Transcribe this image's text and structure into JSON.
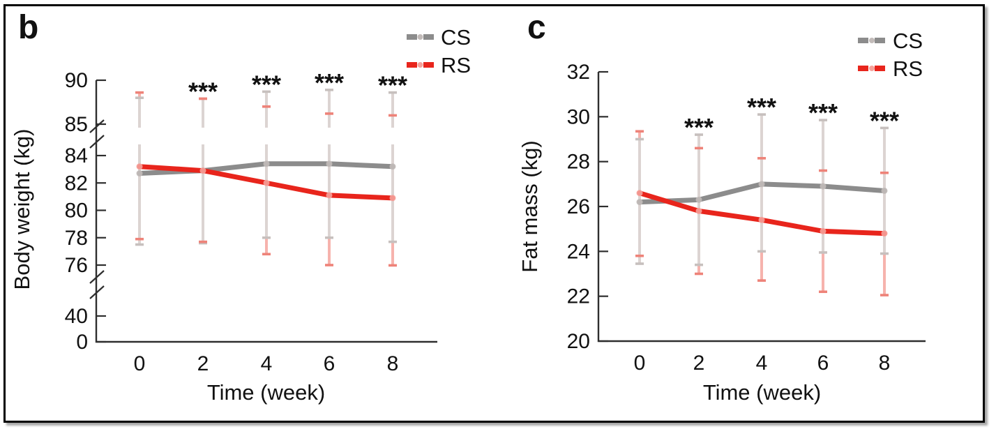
{
  "figure": {
    "type": "scientific-figure",
    "panel_count": 2,
    "panel_letters": [
      "b",
      "c"
    ]
  },
  "style": {
    "axis_color": "#2e2e2e",
    "text_color": "#111111",
    "cs_color": "#8c8c8c",
    "rs_color": "#e8251c",
    "cs_errorbar_color": "#dcd4d2",
    "rs_errorbar_color": "#f6b3ad",
    "cs_cap_color": "#c7c0be",
    "rs_cap_color": "#ee8379",
    "cs_marker_color": "#c2bbb9",
    "rs_marker_color": "#f5a29b",
    "star_color": "#000000",
    "background": "#ffffff"
  },
  "chart_data": [
    {
      "type": "line",
      "title": "b",
      "xlabel": "Time (week)",
      "ylabel": "Body weight (kg)",
      "x": [
        0,
        2,
        4,
        6,
        8
      ],
      "xtick_labels": [
        "0",
        "2",
        "4",
        "6",
        "8"
      ],
      "yticks": [
        0,
        40,
        76,
        78,
        80,
        82,
        84,
        85,
        90
      ],
      "axis_breaks": [
        [
          40,
          76
        ],
        [
          84,
          85
        ]
      ],
      "legend_position": "top-right",
      "grid": false,
      "series": [
        {
          "name": "CS",
          "color": "#8c8c8c",
          "err_color": "#dcd4d2",
          "cap_color": "#c7c0be",
          "marker_color": "#c2bbb9",
          "values": [
            82.7,
            82.9,
            83.4,
            83.4,
            83.2
          ],
          "err_top": [
            88.0,
            87.9,
            88.7,
            88.9,
            88.6
          ],
          "err_bot": [
            77.5,
            77.6,
            78.0,
            78.0,
            77.7
          ]
        },
        {
          "name": "RS",
          "color": "#e8251c",
          "err_color": "#f6b3ad",
          "cap_color": "#ee8379",
          "marker_color": "#f5a29b",
          "values": [
            83.2,
            82.9,
            82.0,
            81.1,
            80.9
          ],
          "err_top": [
            88.6,
            87.9,
            87.0,
            86.2,
            86.0
          ],
          "err_bot": [
            77.9,
            77.7,
            76.8,
            76.0,
            75.8
          ]
        }
      ],
      "significance": {
        "label": "***",
        "weeks": [
          2,
          4,
          6,
          8
        ]
      }
    },
    {
      "type": "line",
      "title": "c",
      "xlabel": "Time (week)",
      "ylabel": "Fat mass (kg)",
      "x": [
        0,
        2,
        4,
        6,
        8
      ],
      "xtick_labels": [
        "0",
        "2",
        "4",
        "6",
        "8"
      ],
      "yticks": [
        20,
        22,
        24,
        26,
        28,
        30,
        32
      ],
      "ylim": [
        20,
        32
      ],
      "axis_breaks": [],
      "legend_position": "top-right",
      "grid": false,
      "series": [
        {
          "name": "CS",
          "color": "#8c8c8c",
          "err_color": "#dcd4d2",
          "cap_color": "#c7c0be",
          "marker_color": "#c2bbb9",
          "values": [
            26.2,
            26.3,
            27.0,
            26.9,
            26.7
          ],
          "err_top": [
            29.0,
            29.2,
            30.1,
            29.85,
            29.5
          ],
          "err_bot": [
            23.45,
            23.4,
            24.0,
            23.95,
            23.9
          ]
        },
        {
          "name": "RS",
          "color": "#e8251c",
          "err_color": "#f6b3ad",
          "cap_color": "#ee8379",
          "marker_color": "#f5a29b",
          "values": [
            26.6,
            25.8,
            25.4,
            24.9,
            24.8
          ],
          "err_top": [
            29.35,
            28.6,
            28.15,
            27.6,
            27.5
          ],
          "err_bot": [
            23.8,
            23.0,
            22.7,
            22.2,
            22.05
          ]
        }
      ],
      "significance": {
        "label": "***",
        "weeks": [
          2,
          4,
          6,
          8
        ]
      }
    }
  ]
}
